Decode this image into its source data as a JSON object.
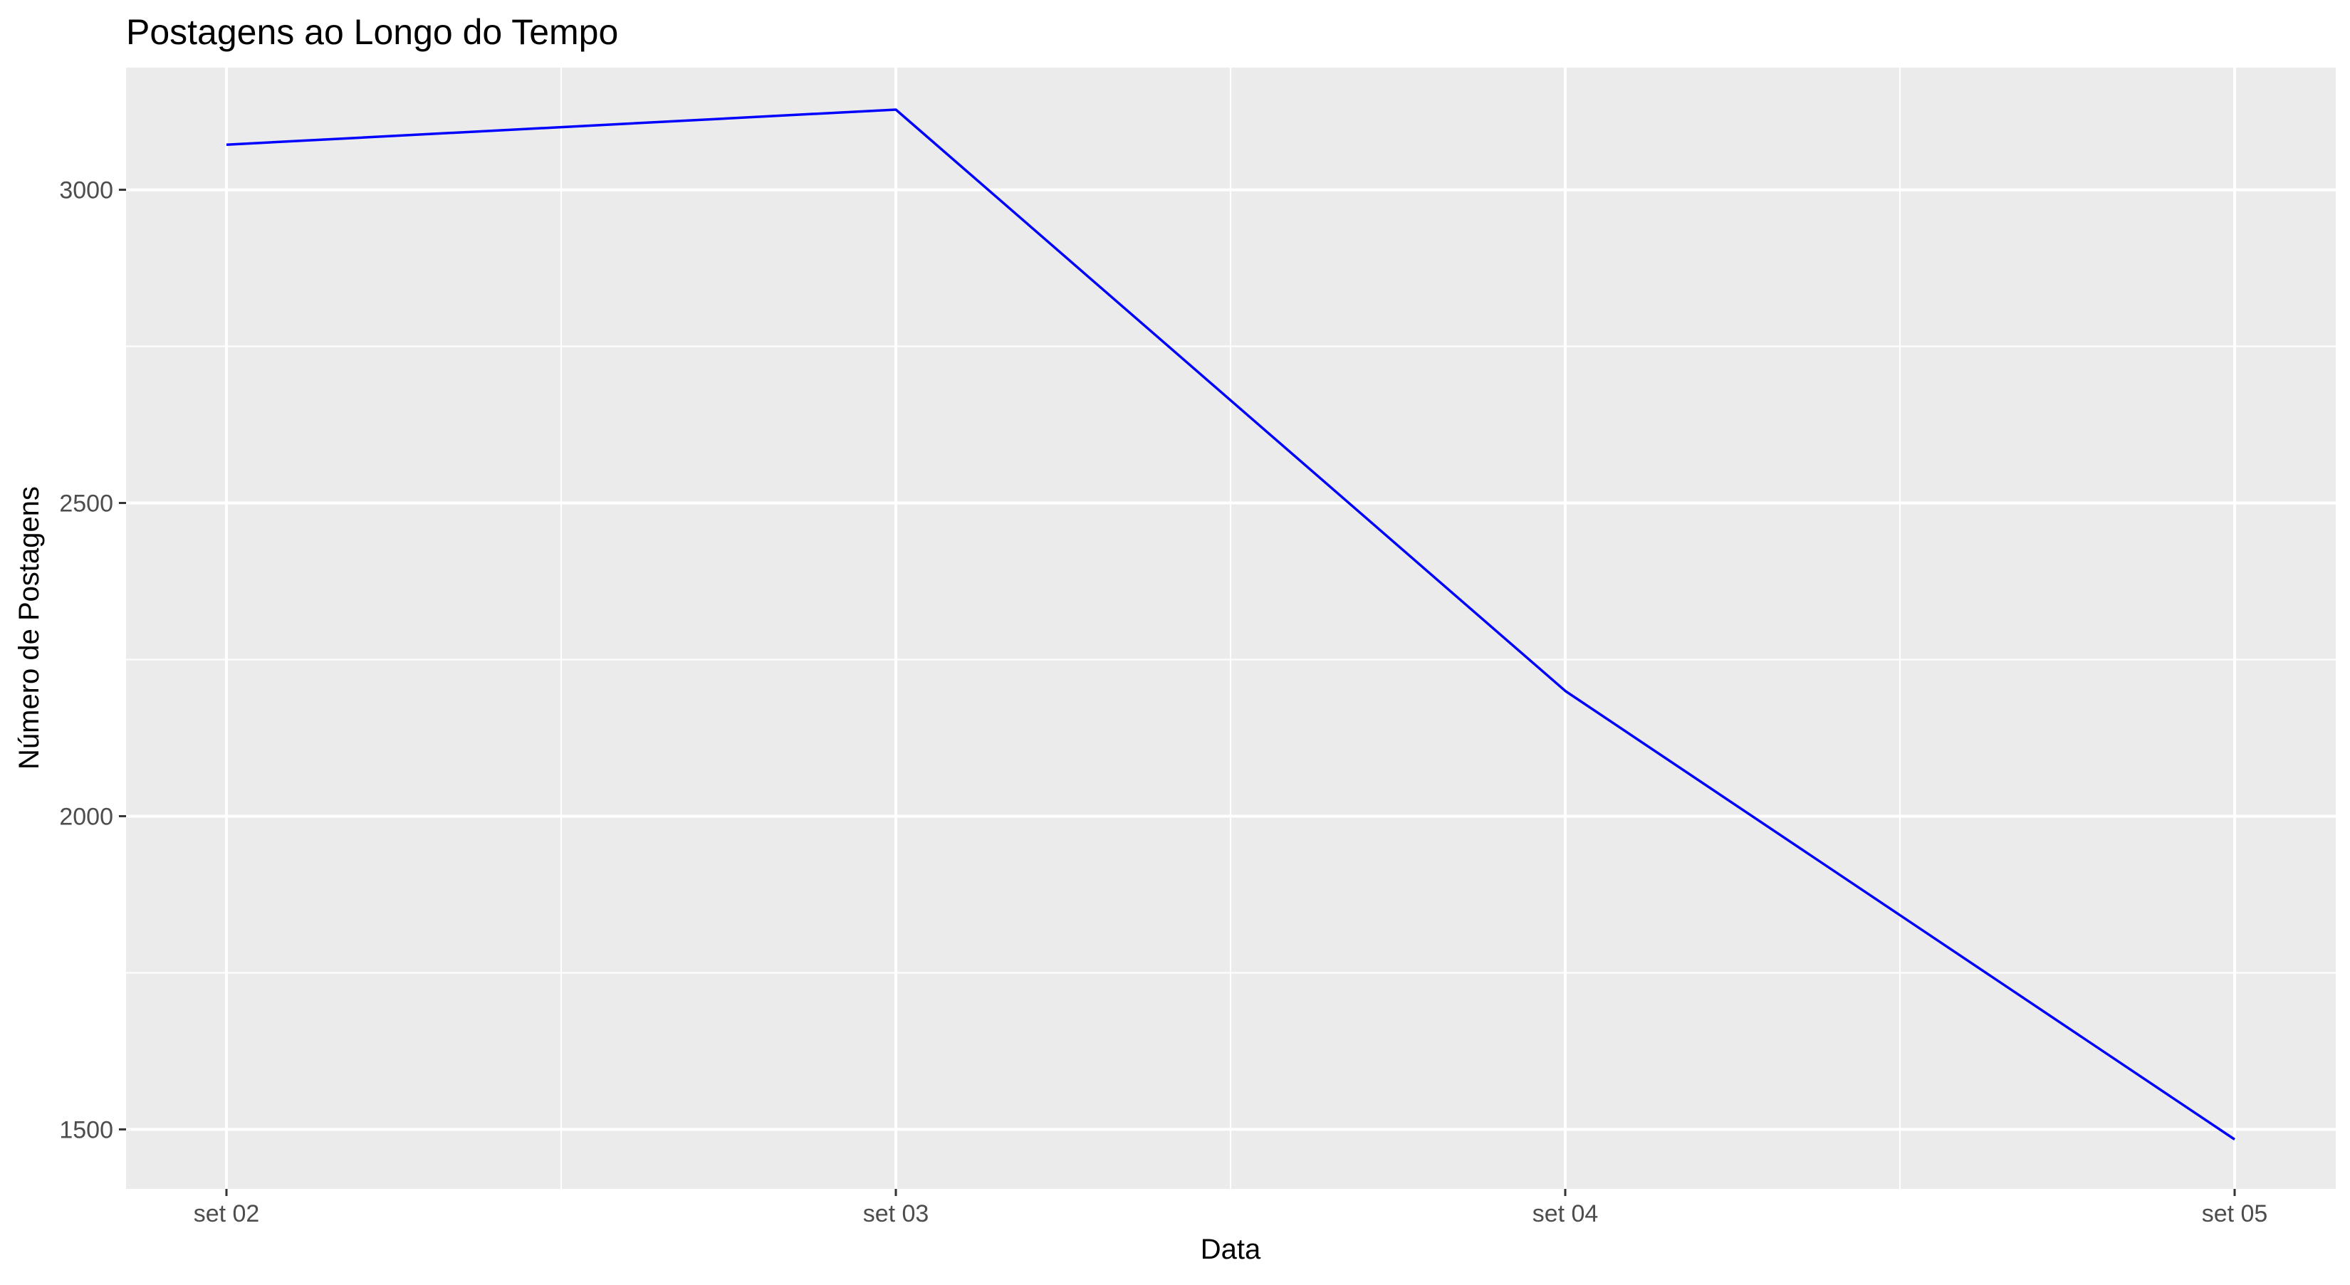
{
  "chart_data": {
    "type": "line",
    "title": "Postagens ao Longo do Tempo",
    "xlabel": "Data",
    "ylabel": "Número de Postagens",
    "x": [
      "set 02",
      "set 03",
      "set 04",
      "set 05"
    ],
    "series": [
      {
        "values": [
          3072,
          3128,
          2200,
          1484
        ],
        "color": "#0000ff"
      }
    ],
    "y_ticks": [
      1500,
      2000,
      2500,
      3000
    ],
    "y_tick_labels": [
      "1500",
      "2000",
      "2500",
      "3000"
    ],
    "ylim": [
      1405,
      3195
    ],
    "grid": true,
    "legend": "none",
    "colors": {
      "panel_background": "#ebebeb",
      "grid_line": "#ffffff",
      "tick_mark": "#333333"
    }
  }
}
